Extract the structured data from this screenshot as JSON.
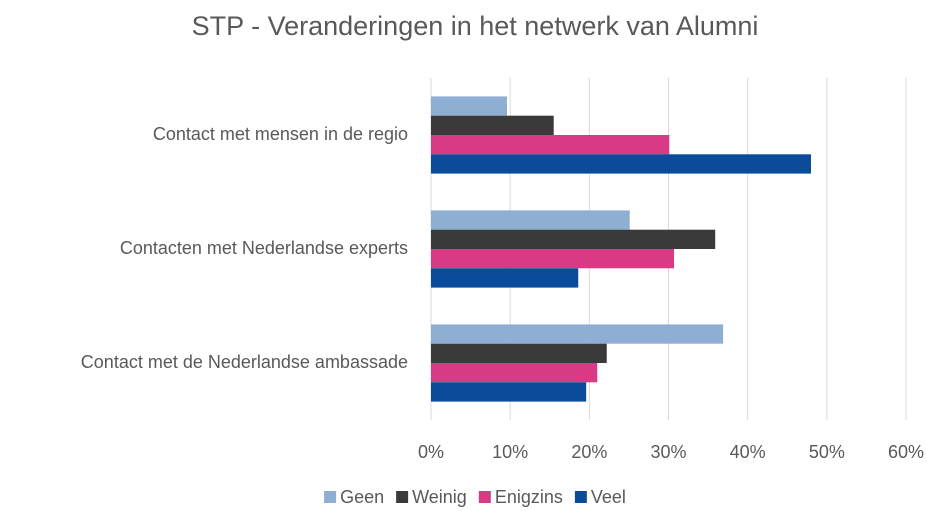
{
  "chart_data": {
    "type": "bar",
    "orientation": "horizontal",
    "title": "STP - Veranderingen in het netwerk van Alumni",
    "categories": [
      "Contact met mensen in de regio",
      "Contacten met Nederlandse experts",
      "Contact met de Nederlandse ambassade"
    ],
    "series": [
      {
        "name": "Geen",
        "color": "#8eaed4",
        "values": [
          9.6,
          25.1,
          36.9
        ]
      },
      {
        "name": "Weinig",
        "color": "#3a3a3a",
        "values": [
          15.5,
          35.9,
          22.2
        ]
      },
      {
        "name": "Enigzins",
        "color": "#d83a85",
        "values": [
          30.1,
          30.7,
          21
        ]
      },
      {
        "name": "Veel",
        "color": "#0a4b9a",
        "values": [
          48,
          18.6,
          19.6
        ]
      }
    ],
    "xlim": [
      0,
      60
    ],
    "xticks": [
      {
        "value": 0,
        "label": "0%"
      },
      {
        "value": 10,
        "label": "10%"
      },
      {
        "value": 20,
        "label": "20%"
      },
      {
        "value": 30,
        "label": "30%"
      },
      {
        "value": 40,
        "label": "40%"
      },
      {
        "value": 50,
        "label": "50%"
      },
      {
        "value": 60,
        "label": "60%"
      }
    ],
    "grid": true,
    "legend": "bottom"
  }
}
